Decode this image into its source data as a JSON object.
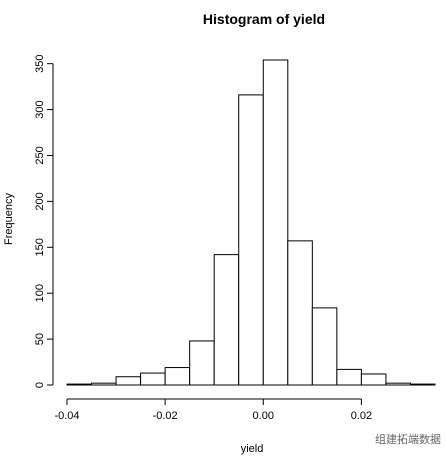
{
  "chart_data": {
    "type": "bar",
    "title": "Histogram of yield",
    "xlabel": "yield",
    "ylabel": "Frequency",
    "bin_edges": [
      -0.04,
      -0.035,
      -0.03,
      -0.025,
      -0.02,
      -0.015,
      -0.01,
      -0.005,
      0.0,
      0.005,
      0.01,
      0.015,
      0.02,
      0.025,
      0.03,
      0.035
    ],
    "values": [
      1,
      2,
      9,
      13,
      19,
      48,
      142,
      316,
      354,
      157,
      84,
      17,
      12,
      2,
      1
    ],
    "x_ticks": [
      -0.04,
      -0.02,
      0.0,
      0.02
    ],
    "x_tick_labels": [
      "-0.04",
      "-0.02",
      "0.00",
      "0.02"
    ],
    "y_ticks": [
      0,
      50,
      100,
      150,
      200,
      250,
      300,
      350
    ],
    "y_tick_labels": [
      "0",
      "50",
      "100",
      "150",
      "200",
      "250",
      "300",
      "350"
    ],
    "xlim": [
      -0.04,
      0.035
    ],
    "ylim": [
      0,
      354
    ],
    "grid": false,
    "colors": {
      "bar_fill": "#ffffff",
      "bar_stroke": "#000000"
    }
  },
  "watermark": {
    "text": "组建拓端数据"
  }
}
